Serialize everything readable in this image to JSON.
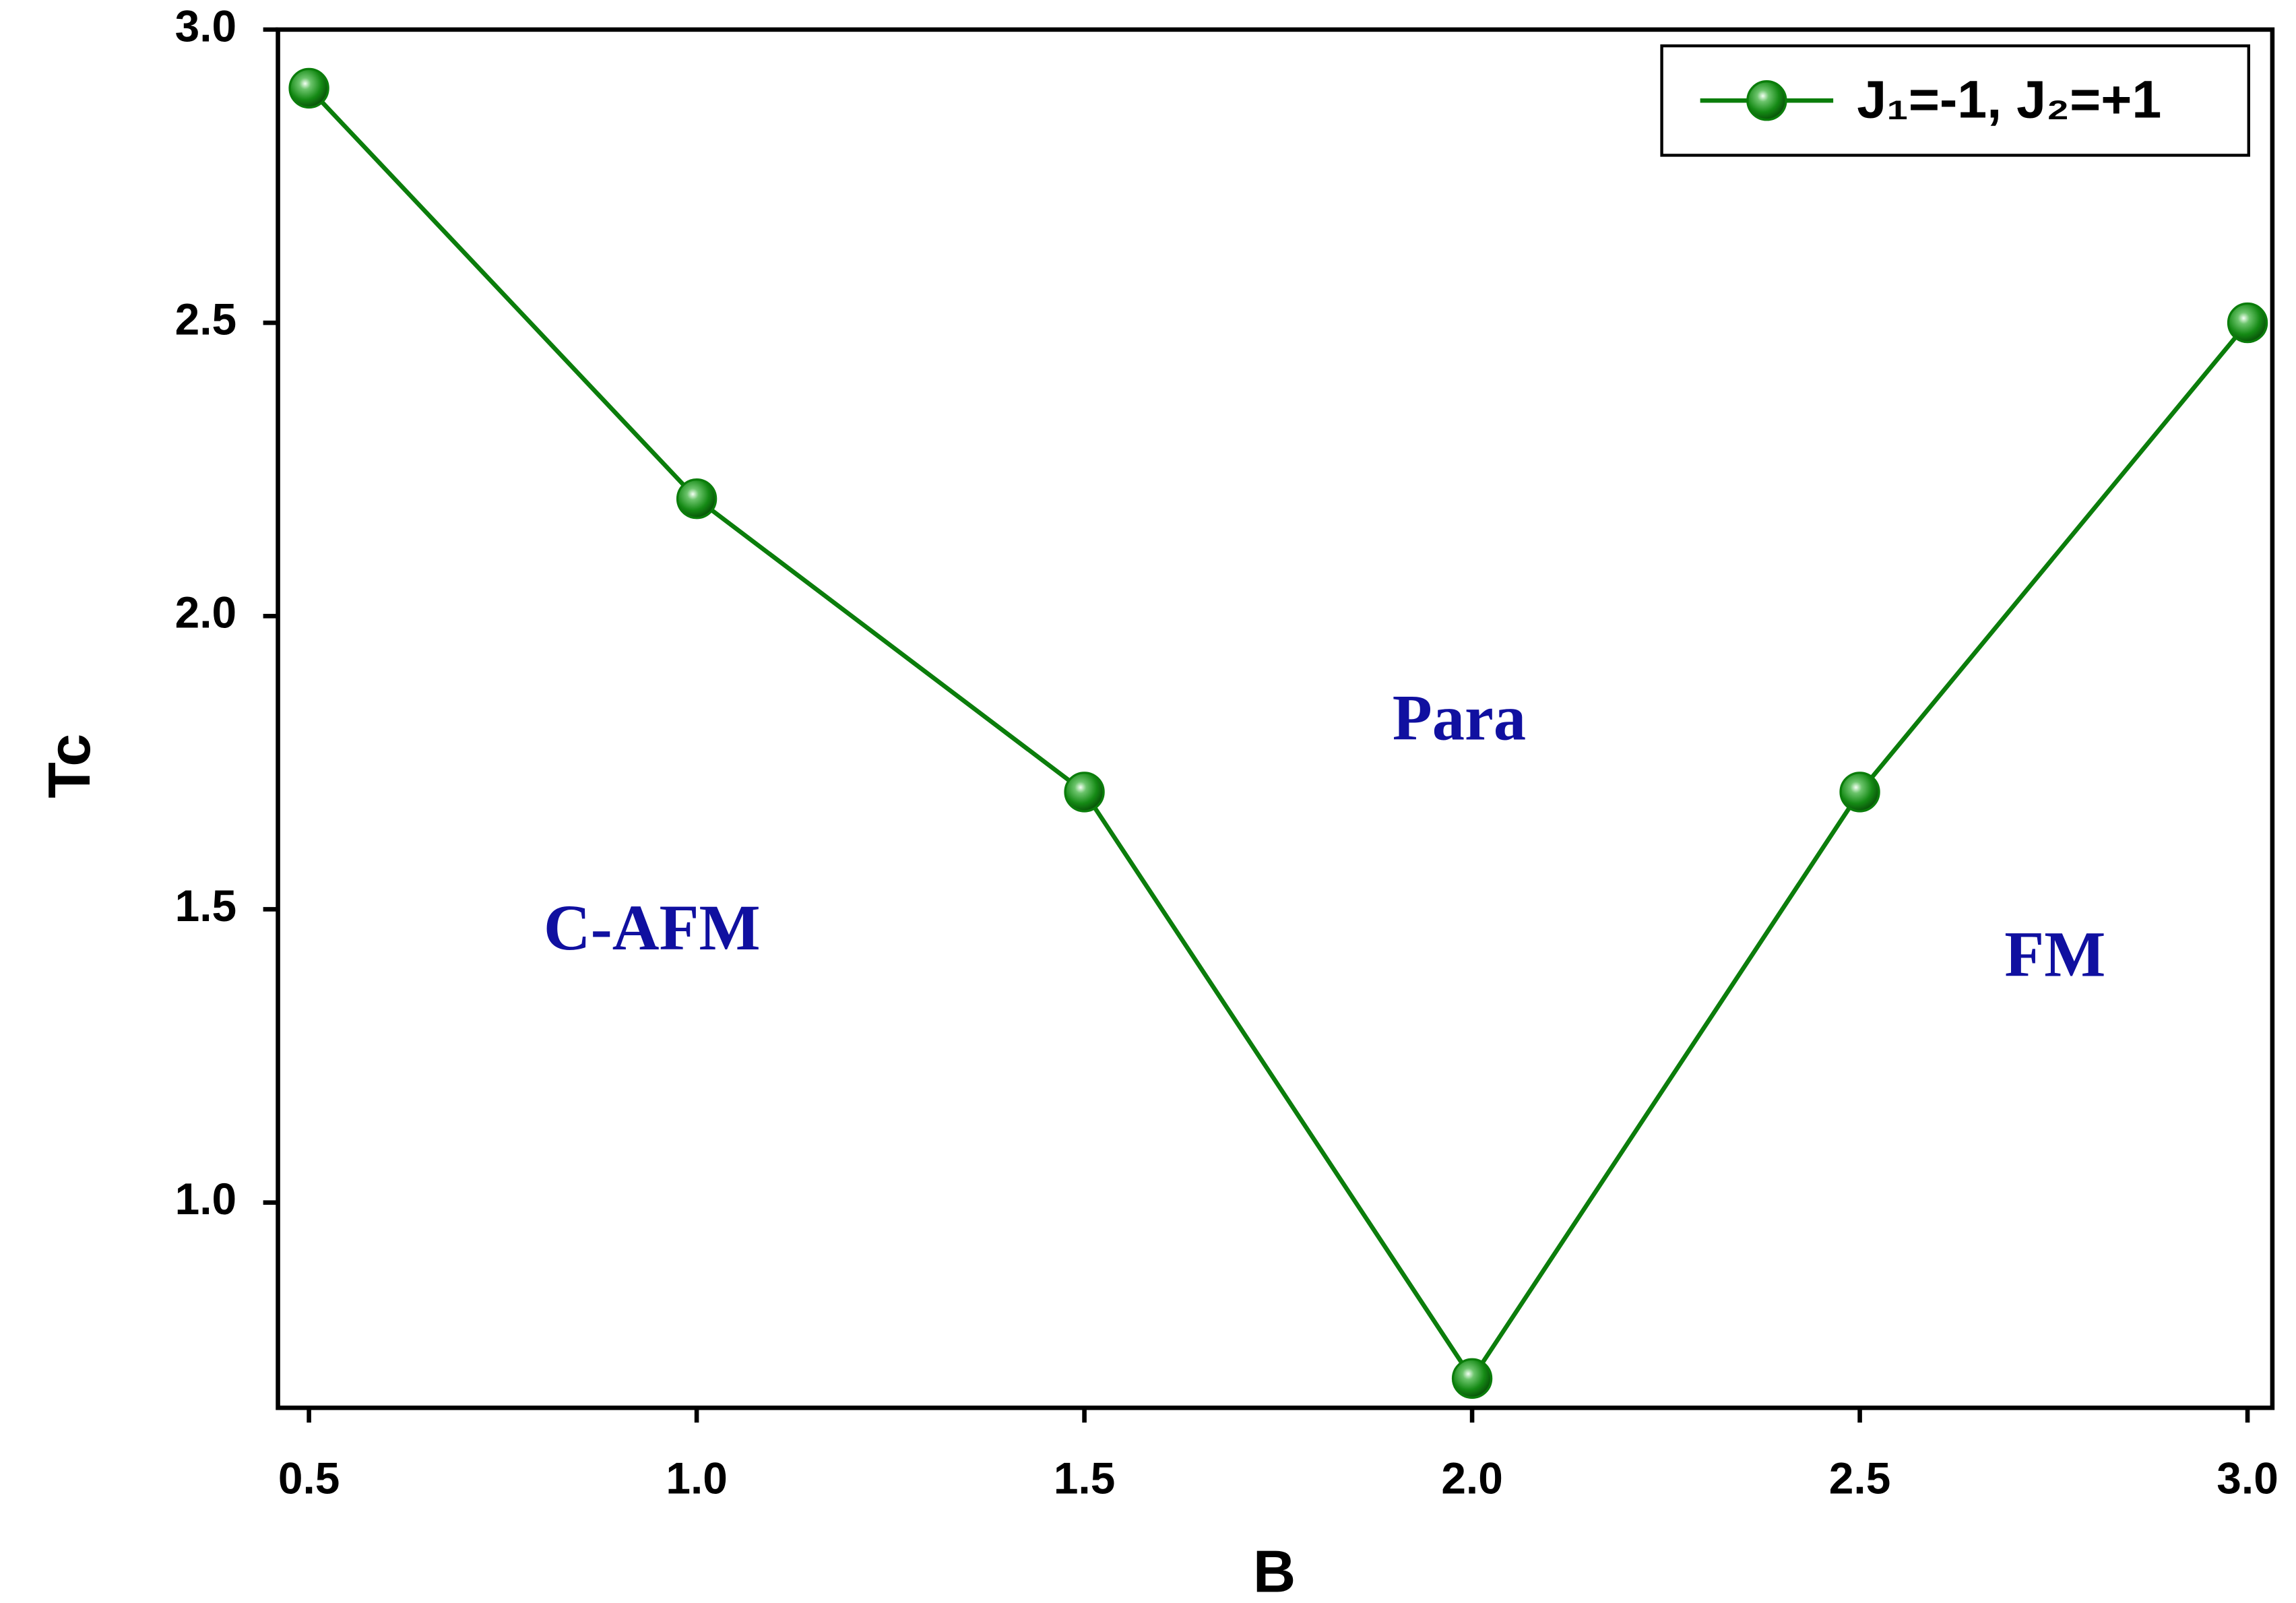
{
  "chart_data": {
    "type": "line",
    "x_label": "B",
    "y_label": "Tc",
    "x": [
      0.5,
      1.0,
      1.5,
      2.0,
      2.5,
      3.0
    ],
    "series": [
      {
        "name": "J₁=-1, J₂=+1",
        "color": "#0b7d0b",
        "values": [
          2.9,
          2.2,
          1.7,
          0.7,
          1.7,
          2.5
        ]
      }
    ],
    "xlim": [
      0.46,
      3.032
    ],
    "ylim": [
      0.65,
      3.0
    ],
    "xticks": [
      {
        "value": 0.5,
        "label": "0.5"
      },
      {
        "value": 1.0,
        "label": "1.0"
      },
      {
        "value": 1.5,
        "label": "1.5"
      },
      {
        "value": 2.0,
        "label": "2.0"
      },
      {
        "value": 2.5,
        "label": "2.5"
      },
      {
        "value": 3.0,
        "label": "3.0"
      }
    ],
    "yticks": [
      {
        "value": 1.0,
        "label": "1.0"
      },
      {
        "value": 1.5,
        "label": "1.5"
      },
      {
        "value": 2.0,
        "label": "2.0"
      },
      {
        "value": 2.5,
        "label": "2.5"
      },
      {
        "value": 3.0,
        "label": "3.0"
      }
    ],
    "annotations": [
      "C-AFM",
      "Para",
      "FM"
    ],
    "legend": "upper right",
    "grid": false
  }
}
